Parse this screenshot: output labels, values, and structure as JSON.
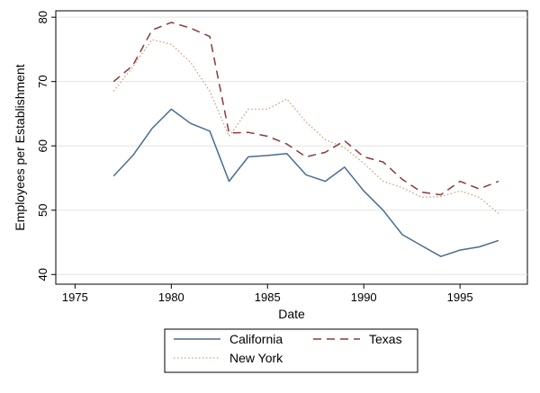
{
  "chart_data": {
    "type": "line",
    "xlabel": "Date",
    "ylabel": "Employees per Establishment",
    "xlim": [
      1974,
      1998.5
    ],
    "ylim": [
      38.5,
      81
    ],
    "xticks": [
      1975,
      1980,
      1985,
      1990,
      1995
    ],
    "yticks": [
      40,
      50,
      60,
      70,
      80
    ],
    "grid": true,
    "legend_position": "bottom",
    "x": [
      1977,
      1978,
      1979,
      1980,
      1981,
      1982,
      1983,
      1984,
      1985,
      1986,
      1987,
      1988,
      1989,
      1990,
      1991,
      1992,
      1993,
      1994,
      1995,
      1996,
      1997
    ],
    "series": [
      {
        "name": "California",
        "color": "#4a6c8f",
        "dash": "solid",
        "values": [
          55.3,
          58.5,
          62.7,
          65.7,
          63.5,
          62.3,
          54.5,
          58.3,
          58.5,
          58.8,
          55.5,
          54.5,
          56.7,
          53.0,
          50.0,
          46.2,
          44.5,
          42.8,
          43.8,
          44.3,
          45.3
        ]
      },
      {
        "name": "Texas",
        "color": "#8b3a3a",
        "dash": "dashed",
        "values": [
          70.0,
          72.5,
          78.0,
          79.2,
          78.3,
          77.0,
          62.0,
          62.1,
          61.5,
          60.3,
          58.3,
          59.0,
          60.8,
          58.3,
          57.5,
          54.8,
          52.8,
          52.4,
          54.5,
          53.3,
          54.5
        ]
      },
      {
        "name": "New York",
        "color": "#c8a27a",
        "dash": "dotted",
        "values": [
          68.5,
          72.3,
          76.5,
          75.8,
          73.0,
          68.5,
          61.5,
          65.7,
          65.7,
          67.3,
          63.7,
          61.0,
          59.7,
          57.3,
          54.5,
          53.5,
          52.0,
          52.1,
          53.0,
          52.0,
          49.5
        ]
      }
    ]
  }
}
